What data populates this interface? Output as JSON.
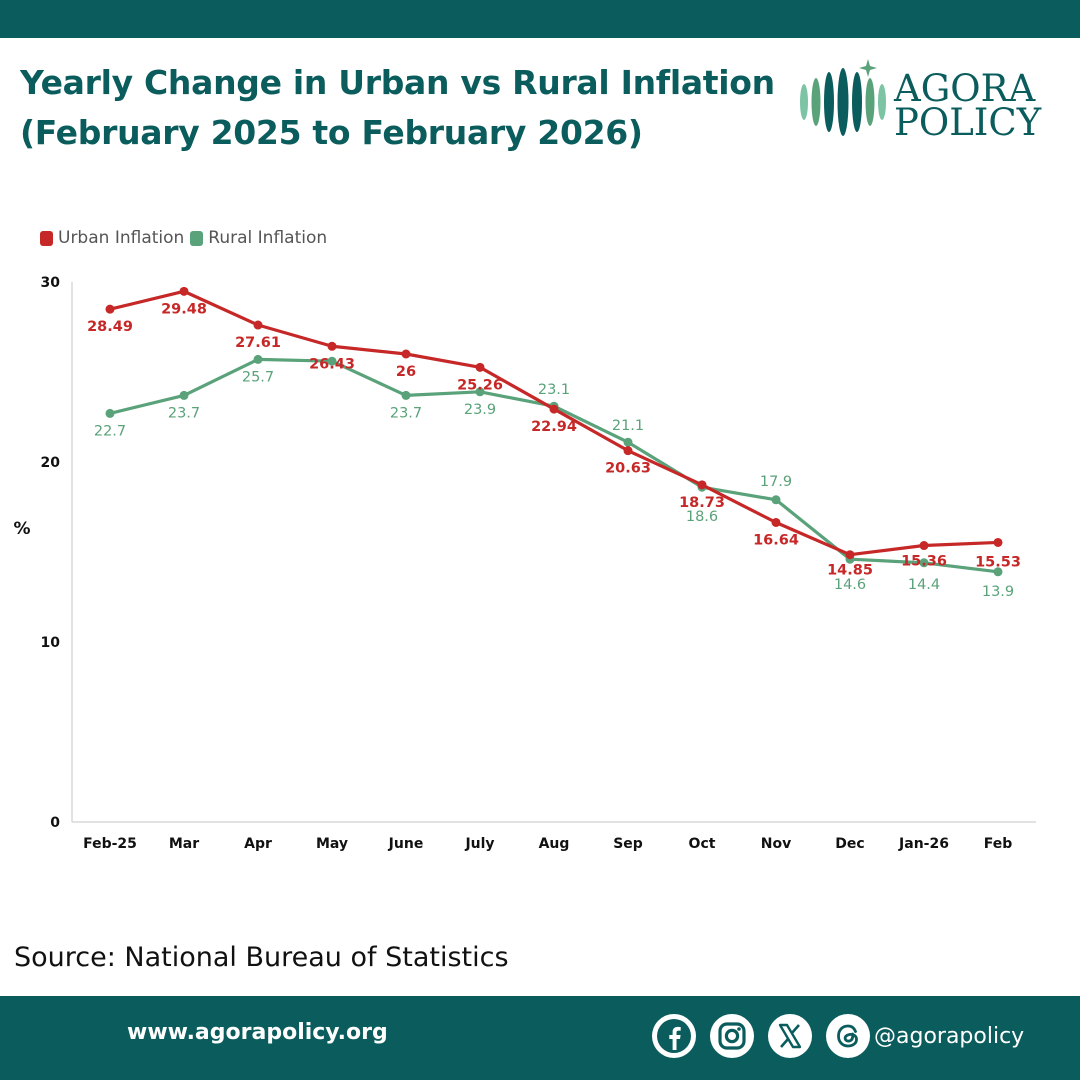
{
  "header": {
    "title_line1": "Yearly Change in Urban vs Rural Inflation",
    "title_line2": "(February 2025 to February 2026)"
  },
  "logo": {
    "line1": "AGORA",
    "line2": "POLICY"
  },
  "colors": {
    "brand": "#0b5c5c",
    "urban": "#c62828",
    "rural": "#5aa27a"
  },
  "source": "Source: National Bureau of Statistics",
  "footer": {
    "website": "www.agorapolicy.org",
    "handle": "@agorapolicy"
  },
  "chart_data": {
    "type": "line",
    "title": "Yearly Change in Urban vs Rural Inflation",
    "xlabel": "",
    "ylabel": "%",
    "ylim": [
      0,
      30
    ],
    "yticks": [
      0,
      10,
      20,
      30
    ],
    "legend_position": "top-left",
    "categories": [
      "Feb-25",
      "Mar",
      "Apr",
      "May",
      "June",
      "July",
      "Aug",
      "Sep",
      "Oct",
      "Nov",
      "Dec",
      "Jan-26",
      "Feb"
    ],
    "series": [
      {
        "name": "Urban Inflation",
        "values": [
          28.49,
          29.48,
          27.61,
          26.43,
          26,
          25.26,
          22.94,
          20.63,
          18.73,
          16.64,
          14.85,
          15.36,
          15.53
        ],
        "labels": [
          "28.49",
          "29.48",
          "27.61",
          "26.43",
          "26",
          "25.26",
          "22.94",
          "20.63",
          "18.73",
          "16.64",
          "14.85",
          "15.36",
          "15.53"
        ]
      },
      {
        "name": "Rural Inflation",
        "values": [
          22.7,
          23.7,
          25.7,
          25.6,
          23.7,
          23.9,
          23.1,
          21.1,
          18.6,
          17.9,
          14.6,
          14.4,
          13.9
        ],
        "labels": [
          "22.7",
          "23.7",
          "25.7",
          "",
          "23.7",
          "23.9",
          "23.1",
          "21.1",
          "18.6",
          "17.9",
          "14.6",
          "14.4",
          "13.9"
        ]
      }
    ]
  }
}
